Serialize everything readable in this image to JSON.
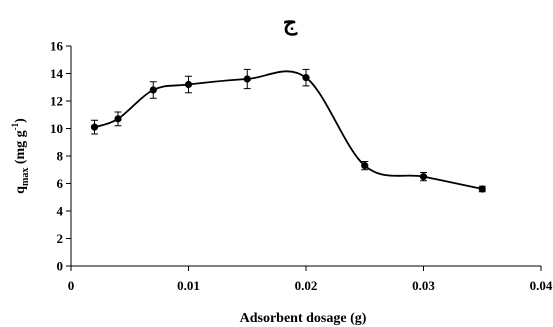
{
  "chart_data": {
    "type": "line",
    "title": "ج",
    "xlabel": "Adsorbent dosage (g)",
    "ylabel_parts": {
      "main": "q",
      "sub": "max",
      "unit_open": " (mg g",
      "unit_sup": "-1",
      "unit_close": ")"
    },
    "xlim": [
      0,
      0.04
    ],
    "ylim": [
      0,
      16
    ],
    "xticks": [
      0,
      0.01,
      0.02,
      0.03,
      0.04
    ],
    "xtick_labels": [
      "0",
      "0.01",
      "0.02",
      "0.03",
      "0.04"
    ],
    "yticks": [
      0,
      2,
      4,
      6,
      8,
      10,
      12,
      14,
      16
    ],
    "ytick_labels": [
      "0",
      "2",
      "4",
      "6",
      "8",
      "10",
      "12",
      "14",
      "16"
    ],
    "grid": false,
    "smooth": true,
    "series": [
      {
        "x": [
          0.002,
          0.004,
          0.007,
          0.01,
          0.015,
          0.02,
          0.025,
          0.03,
          0.035
        ],
        "y": [
          10.1,
          10.7,
          12.8,
          13.2,
          13.6,
          13.7,
          7.3,
          6.5,
          5.6
        ],
        "error": [
          0.5,
          0.5,
          0.6,
          0.6,
          0.7,
          0.6,
          0.3,
          0.3,
          0.2
        ],
        "color": "#000000",
        "marker": "circle"
      }
    ]
  }
}
